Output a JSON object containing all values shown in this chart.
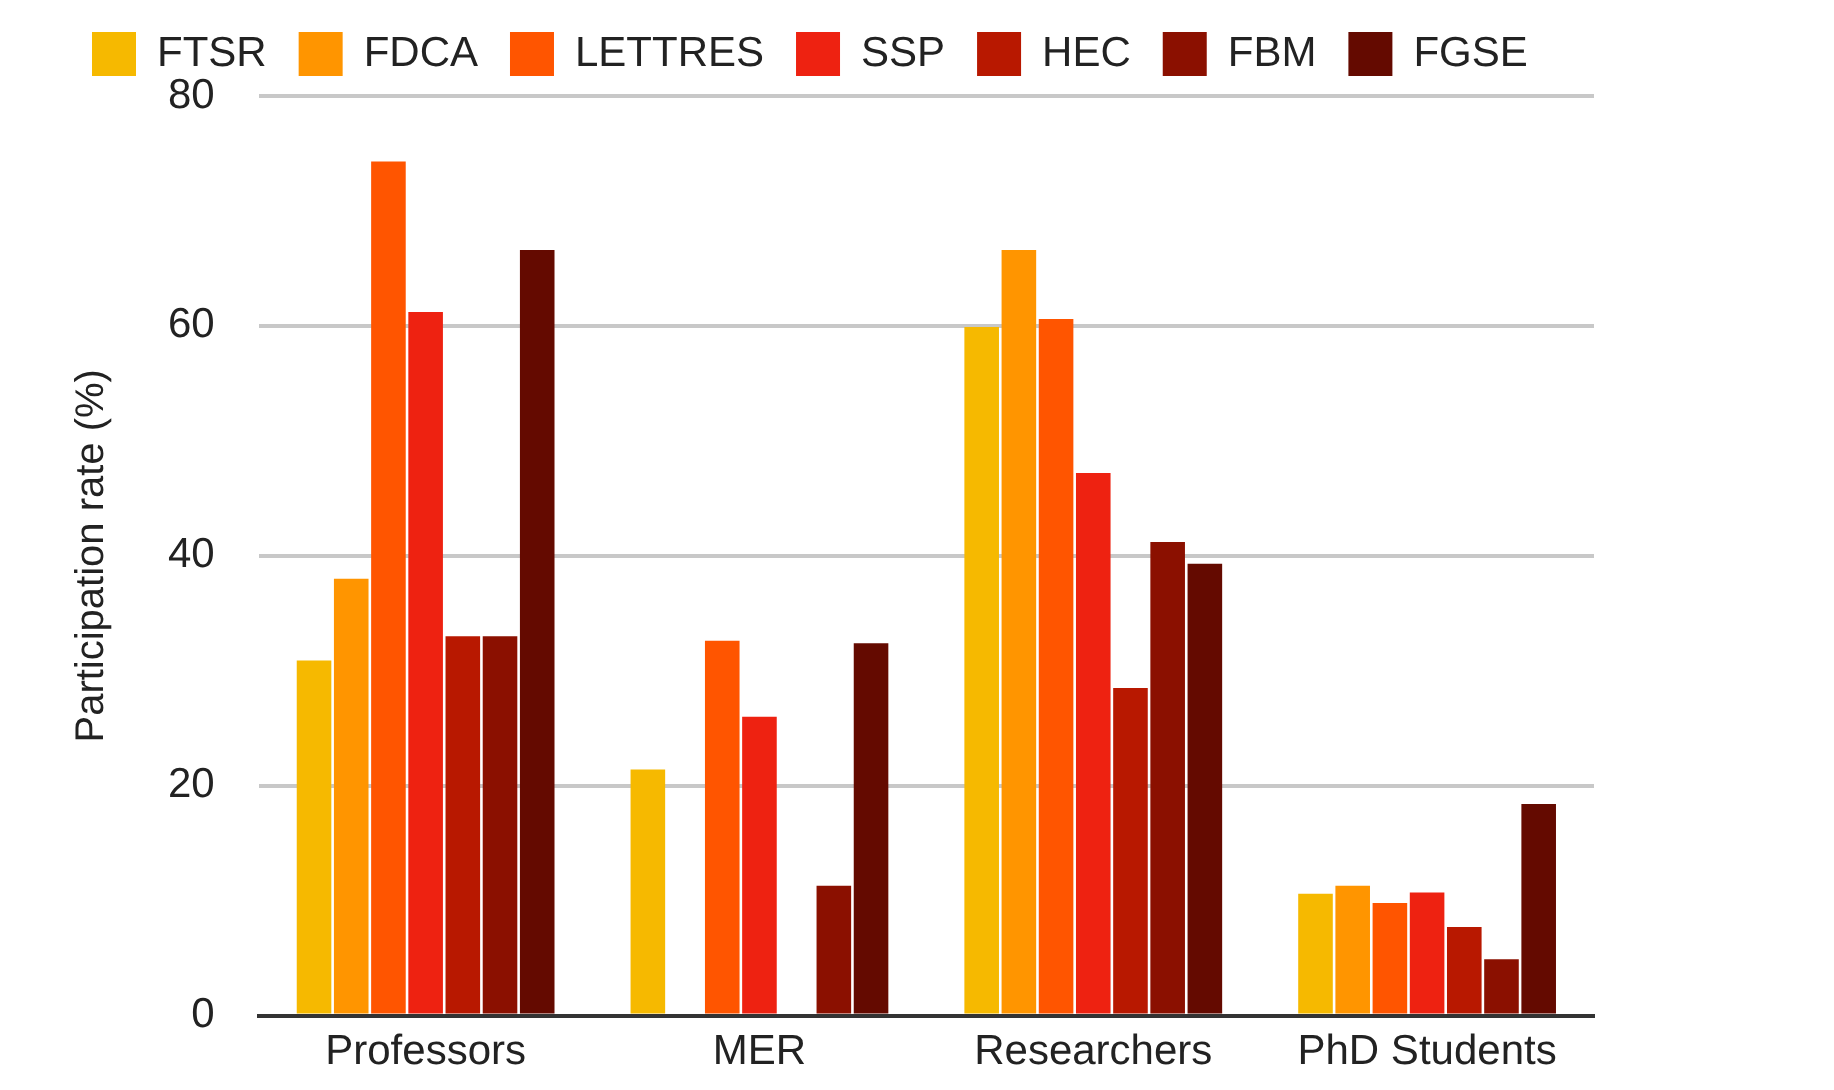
{
  "chart_data": {
    "type": "bar",
    "ylabel": "Participation rate (%)",
    "categories": [
      "Professors",
      "MER",
      "Researchers",
      "PhD Students"
    ],
    "series": [
      {
        "name": "FTSR",
        "color": "#f6b900",
        "values": [
          30.9,
          21.4,
          59.9,
          10.6
        ]
      },
      {
        "name": "FDCA",
        "color": "#ff9500",
        "values": [
          38.0,
          null,
          66.6,
          11.3
        ]
      },
      {
        "name": "LETTRES",
        "color": "#ff5500",
        "values": [
          74.3,
          32.6,
          60.6,
          9.8
        ]
      },
      {
        "name": "SSP",
        "color": "#ee2211",
        "values": [
          61.2,
          26.0,
          47.2,
          10.7
        ]
      },
      {
        "name": "HEC",
        "color": "#b81800",
        "values": [
          33.0,
          null,
          28.5,
          7.7
        ]
      },
      {
        "name": "FBM",
        "color": "#8b1000",
        "values": [
          33.0,
          11.3,
          41.2,
          4.9
        ]
      },
      {
        "name": "FGSE",
        "color": "#640a00",
        "values": [
          66.6,
          32.4,
          39.3,
          18.4
        ]
      }
    ],
    "ylim": [
      0,
      80
    ],
    "yticks": [
      0,
      20,
      40,
      60,
      80
    ],
    "grid": "y",
    "legend": "top"
  }
}
